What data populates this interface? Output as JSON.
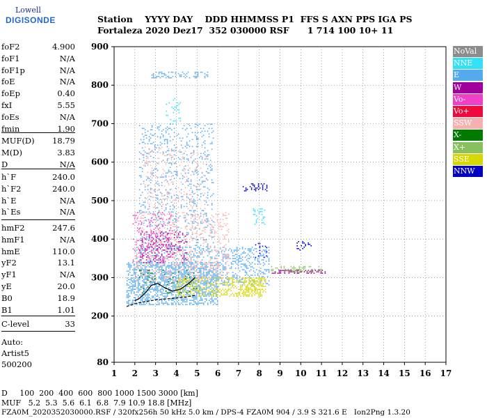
{
  "logo": {
    "line1": "Lowell",
    "line2": "DIGISONDE"
  },
  "header": {
    "row1": "Station    YYYY DAY    DDD HHMMSS P1  FFS S AXN PPS IGA PS",
    "row2": "Fortaleza 2020 Dez17  352 030000 RSF      1 714 100 10+ 11"
  },
  "params_group1": [
    {
      "name": "foF2",
      "value": "4.900"
    },
    {
      "name": "foF1",
      "value": "N/A"
    },
    {
      "name": "foF1p",
      "value": "N/A"
    },
    {
      "name": "foE",
      "value": "N/A"
    },
    {
      "name": "foEp",
      "value": "0.40"
    },
    {
      "name": "fxI",
      "value": "5.55"
    },
    {
      "name": "foEs",
      "value": "N/A"
    },
    {
      "name": "fmin",
      "value": "1.90"
    }
  ],
  "params_group2": [
    {
      "name": "MUF(D)",
      "value": "18.79"
    },
    {
      "name": "M(D)",
      "value": "3.83"
    },
    {
      "name": "D",
      "value": "N/A"
    }
  ],
  "params_group3": [
    {
      "name": "h`F",
      "value": "240.0"
    },
    {
      "name": "h`F2",
      "value": "240.0"
    },
    {
      "name": "h`E",
      "value": "N/A"
    },
    {
      "name": "h`Es",
      "value": "N/A"
    }
  ],
  "params_group4": [
    {
      "name": "hmF2",
      "value": "247.6"
    },
    {
      "name": "hmF1",
      "value": "N/A"
    },
    {
      "name": "hmE",
      "value": "110.0"
    },
    {
      "name": "yF2",
      "value": "13.1"
    },
    {
      "name": "yF1",
      "value": "N/A"
    },
    {
      "name": "yE",
      "value": "20.0"
    },
    {
      "name": "B0",
      "value": "18.9"
    },
    {
      "name": "B1",
      "value": "1.01"
    }
  ],
  "params_group5": [
    {
      "name": "C-level",
      "value": "33"
    }
  ],
  "autoscale": {
    "line1": "Auto:",
    "line2": "Artist5",
    "line3": "500200"
  },
  "legend": [
    {
      "label": "NoVal",
      "color": "#8c8c8c"
    },
    {
      "label": "NNE",
      "color": "#33e0f5"
    },
    {
      "label": "E",
      "color": "#55aaee"
    },
    {
      "label": "W",
      "color": "#a0009c"
    },
    {
      "label": "Vo-",
      "color": "#f040c8"
    },
    {
      "label": "Vo+",
      "color": "#ee0a3c"
    },
    {
      "label": "SSW",
      "color": "#f5b0b0"
    },
    {
      "label": "X-",
      "color": "#007a00"
    },
    {
      "label": "X+",
      "color": "#88c060"
    },
    {
      "label": "SSE",
      "color": "#d6d600"
    },
    {
      "label": "NNW",
      "color": "#0000c0"
    }
  ],
  "bottom": {
    "row1": "D     100  200  400  600  800 1000 1500 3000 [km]",
    "row2": "MUF   5.2  5.3  5.6  6.1  6.8  7.9 10.9 18.8 [MHz]",
    "row3": "FZA0M_2020352030000.RSF / 320fx256h 50 kHz 5.0 km / DPS-4 FZA0M 904 / 3.9 S 321.6 E   Ion2Png 1.3.20"
  },
  "chart_data": {
    "type": "scatter",
    "title": "",
    "xlabel": "",
    "ylabel": "",
    "xlim": [
      1,
      17
    ],
    "ylim": [
      80,
      900
    ],
    "x_ticks": [
      "1",
      "2",
      "3",
      "4",
      "5",
      "6",
      "7",
      "8",
      "9",
      "10",
      "11",
      "12",
      "13",
      "14",
      "15",
      "16",
      "17"
    ],
    "y_ticks": [
      "80",
      "200",
      "300",
      "400",
      "500",
      "600",
      "700",
      "800",
      "900"
    ],
    "grid": true,
    "legend_position": "right",
    "clusters": [
      {
        "series": "E",
        "x": [
          1.6,
          6.0
        ],
        "y": [
          230,
          340
        ],
        "density": 0.9
      },
      {
        "series": "E",
        "x": [
          2.0,
          8.5
        ],
        "y": [
          280,
          380
        ],
        "density": 0.5
      },
      {
        "series": "E",
        "x": [
          2.2,
          5.8
        ],
        "y": [
          380,
          700
        ],
        "density": 0.25
      },
      {
        "series": "E",
        "x": [
          2.8,
          5.5
        ],
        "y": [
          820,
          835
        ],
        "density": 0.6
      },
      {
        "series": "NNE",
        "x": [
          3.5,
          4.2
        ],
        "y": [
          700,
          770
        ],
        "density": 0.3
      },
      {
        "series": "NNE",
        "x": [
          7.7,
          8.3
        ],
        "y": [
          440,
          480
        ],
        "density": 0.4
      },
      {
        "series": "SSW",
        "x": [
          2.0,
          6.5
        ],
        "y": [
          290,
          470
        ],
        "density": 0.35
      },
      {
        "series": "SSW",
        "x": [
          2.4,
          5.5
        ],
        "y": [
          480,
          640
        ],
        "density": 0.2
      },
      {
        "series": "W",
        "x": [
          2.2,
          4.5
        ],
        "y": [
          340,
          420
        ],
        "density": 0.3
      },
      {
        "series": "W",
        "x": [
          8.6,
          11.2
        ],
        "y": [
          312,
          320
        ],
        "density": 0.8
      },
      {
        "series": "Vo-",
        "x": [
          1.9,
          3.8
        ],
        "y": [
          340,
          470
        ],
        "density": 0.25
      },
      {
        "series": "SSE",
        "x": [
          4.0,
          8.2
        ],
        "y": [
          250,
          300
        ],
        "density": 0.7
      },
      {
        "series": "SSE",
        "x": [
          7.2,
          8.3
        ],
        "y": [
          260,
          300
        ],
        "density": 0.7
      },
      {
        "series": "X+",
        "x": [
          8.5,
          11.0
        ],
        "y": [
          315,
          330
        ],
        "density": 0.6
      },
      {
        "series": "X-",
        "x": [
          2.2,
          5.0
        ],
        "y": [
          260,
          320
        ],
        "density": 0.1
      },
      {
        "series": "NNW",
        "x": [
          7.2,
          8.4
        ],
        "y": [
          525,
          545
        ],
        "density": 0.5
      },
      {
        "series": "NNW",
        "x": [
          9.8,
          10.5
        ],
        "y": [
          370,
          395
        ],
        "density": 0.5
      },
      {
        "series": "NNW",
        "x": [
          7.8,
          8.4
        ],
        "y": [
          350,
          390
        ],
        "density": 0.3
      }
    ],
    "profile_line": {
      "x": [
        1.6,
        2.2,
        3.0,
        3.8,
        4.5,
        4.9
      ],
      "y": [
        225,
        235,
        242,
        246,
        250,
        254
      ]
    },
    "trace_line": {
      "x": [
        2.0,
        2.2,
        2.5,
        2.8,
        3.1,
        3.4,
        3.8,
        4.2,
        4.6,
        4.9
      ],
      "y": [
        240,
        245,
        260,
        280,
        285,
        275,
        265,
        270,
        285,
        300
      ]
    }
  }
}
